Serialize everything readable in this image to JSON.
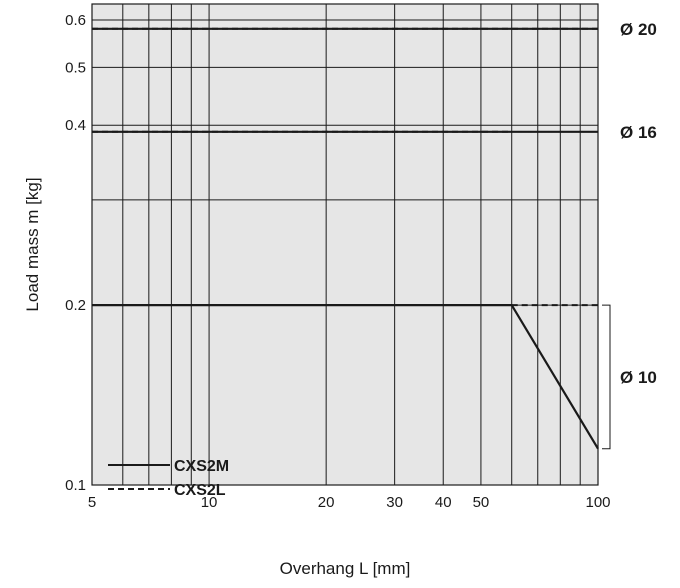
{
  "chart_data": {
    "type": "line",
    "xlabel": "Overhang L [mm]",
    "ylabel": "Load mass m [kg]",
    "x_scale": "log",
    "y_scale": "log",
    "xlim": [
      5,
      100
    ],
    "ylim": [
      0.1,
      0.6
    ],
    "x_ticks": [
      5,
      10,
      20,
      30,
      40,
      50,
      100
    ],
    "y_ticks": [
      0.1,
      0.2,
      0.4,
      0.5,
      0.6
    ],
    "grid": true,
    "legend_position": "bottom-left",
    "legend": [
      {
        "label": "CXS2M",
        "style": "solid"
      },
      {
        "label": "CXS2L",
        "style": "dashed"
      }
    ],
    "series": [
      {
        "name": "CXS2M",
        "bore": "Ø 20",
        "style": "solid",
        "x": [
          5,
          100
        ],
        "y": [
          0.58,
          0.58
        ]
      },
      {
        "name": "CXS2L",
        "bore": "Ø 20",
        "style": "dashed",
        "x": [
          5,
          100
        ],
        "y": [
          0.58,
          0.58
        ]
      },
      {
        "name": "CXS2M",
        "bore": "Ø 16",
        "style": "solid",
        "x": [
          5,
          100
        ],
        "y": [
          0.39,
          0.39
        ]
      },
      {
        "name": "CXS2L",
        "bore": "Ø 16",
        "style": "dashed",
        "x": [
          5,
          60
        ],
        "y": [
          0.39,
          0.39
        ]
      },
      {
        "name": "CXS2M",
        "bore": "Ø 10",
        "style": "solid",
        "x": [
          5,
          60,
          100
        ],
        "y": [
          0.2,
          0.2,
          0.115
        ]
      },
      {
        "name": "CXS2L",
        "bore": "Ø 10",
        "style": "dashed",
        "x": [
          60,
          100
        ],
        "y": [
          0.2,
          0.2
        ]
      }
    ],
    "series_labels": [
      {
        "text": "Ø 20",
        "y": 0.58
      },
      {
        "text": "Ø 16",
        "y": 0.39
      },
      {
        "text": "Ø 10",
        "y_range": [
          0.115,
          0.2
        ]
      }
    ]
  }
}
